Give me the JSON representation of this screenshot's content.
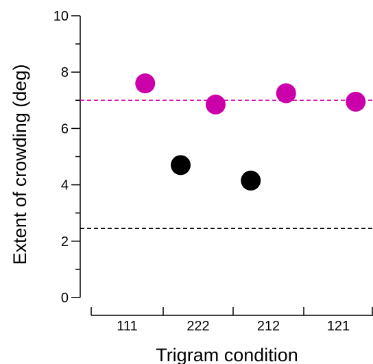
{
  "chart_data": {
    "type": "scatter",
    "xlabel": "Trigram condition",
    "ylabel": "Extent of crowding (deg)",
    "categories": [
      "111",
      "222",
      "212",
      "121"
    ],
    "ylim": [
      0,
      10
    ],
    "yticks": [
      0,
      2,
      4,
      6,
      8,
      10
    ],
    "y_minor_ticks": [
      1,
      3,
      5,
      7,
      9
    ],
    "grid": false,
    "series": [
      {
        "color": "#cc00aa",
        "points": [
          {
            "category": "111",
            "offset": 0.25,
            "y": 7.6
          },
          {
            "category": "222",
            "offset": 0.25,
            "y": 6.85
          },
          {
            "category": "212",
            "offset": 0.25,
            "y": 7.25
          },
          {
            "category": "121",
            "offset": 0.25,
            "y": 6.95
          }
        ]
      },
      {
        "color": "#000000",
        "points": [
          {
            "category": "222",
            "offset": -0.25,
            "y": 4.7
          },
          {
            "category": "212",
            "offset": -0.25,
            "y": 4.15
          }
        ]
      }
    ],
    "reference_lines": [
      {
        "y": 7.0,
        "color": "#cc00aa",
        "style": "dashed"
      },
      {
        "y": 2.45,
        "color": "#000000",
        "style": "dashed"
      }
    ]
  }
}
